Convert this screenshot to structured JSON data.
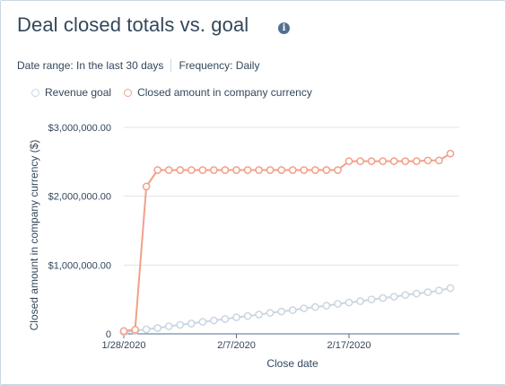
{
  "header": {
    "title": "Deal closed totals vs. goal",
    "info_icon": "info-icon"
  },
  "filters": {
    "date_range": "Date range: In the last 30 days",
    "frequency": "Frequency: Daily"
  },
  "colors": {
    "goal": "#cbd6e2",
    "closed": "#f2a088",
    "axis": "#33475b",
    "grid": "#dfe3eb"
  },
  "chart_data": {
    "type": "line",
    "xlabel": "Close date",
    "ylabel": "Closed amount in company currency ($)",
    "ylim": [
      0,
      3000000
    ],
    "yticks": [
      {
        "value": 0,
        "label": "0"
      },
      {
        "value": 1000000,
        "label": "$1,000,000.00"
      },
      {
        "value": 2000000,
        "label": "$2,000,000.00"
      },
      {
        "value": 3000000,
        "label": "$3,000,000.00"
      }
    ],
    "xtick_labels": [
      "1/28/2020",
      "2/7/2020",
      "2/17/2020"
    ],
    "x": [
      "1/28/2020",
      "1/29/2020",
      "1/30/2020",
      "1/31/2020",
      "2/1/2020",
      "2/2/2020",
      "2/3/2020",
      "2/4/2020",
      "2/5/2020",
      "2/6/2020",
      "2/7/2020",
      "2/8/2020",
      "2/9/2020",
      "2/10/2020",
      "2/11/2020",
      "2/12/2020",
      "2/13/2020",
      "2/14/2020",
      "2/15/2020",
      "2/16/2020",
      "2/17/2020",
      "2/18/2020",
      "2/19/2020",
      "2/20/2020",
      "2/21/2020",
      "2/22/2020",
      "2/23/2020",
      "2/24/2020",
      "2/25/2020",
      "2/26/2020"
    ],
    "legend_position": "top-left",
    "grid": "horizontal",
    "series": [
      {
        "name": "Revenue goal",
        "values": [
          25000,
          45000,
          65000,
          85000,
          110000,
          130000,
          150000,
          175000,
          195000,
          215000,
          240000,
          260000,
          280000,
          305000,
          325000,
          345000,
          370000,
          390000,
          410000,
          435000,
          455000,
          475000,
          500000,
          520000,
          540000,
          565000,
          585000,
          605000,
          630000,
          665000
        ]
      },
      {
        "name": "Closed amount in company currency",
        "values": [
          40000,
          60000,
          2140000,
          2380000,
          2380000,
          2380000,
          2380000,
          2380000,
          2380000,
          2380000,
          2380000,
          2380000,
          2380000,
          2380000,
          2380000,
          2380000,
          2380000,
          2380000,
          2380000,
          2380000,
          2510000,
          2510000,
          2510000,
          2510000,
          2510000,
          2510000,
          2510000,
          2520000,
          2520000,
          2620000
        ]
      }
    ]
  }
}
